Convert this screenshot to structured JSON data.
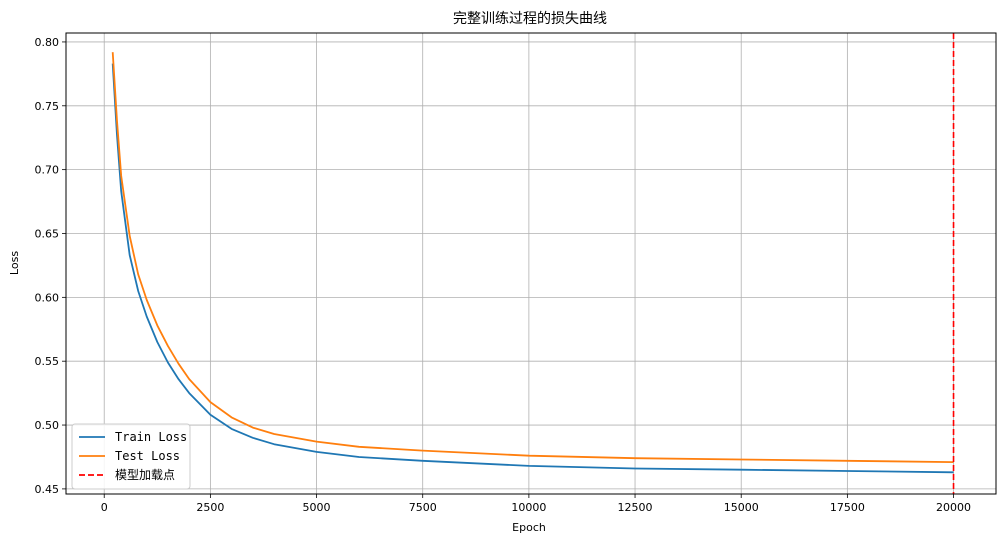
{
  "chart_data": {
    "type": "line",
    "title": "完整训练过程的损失曲线",
    "xlabel": "Epoch",
    "ylabel": "Loss",
    "xlim": [
      -900,
      21000
    ],
    "ylim": [
      0.446,
      0.807
    ],
    "xticks": [
      0,
      2500,
      5000,
      7500,
      10000,
      12500,
      15000,
      17500,
      20000
    ],
    "yticks": [
      0.45,
      0.5,
      0.55,
      0.6,
      0.65,
      0.7,
      0.75,
      0.8
    ],
    "xtick_labels": [
      "0",
      "2500",
      "5000",
      "7500",
      "10000",
      "12500",
      "15000",
      "17500",
      "20000"
    ],
    "ytick_labels": [
      "0.45",
      "0.50",
      "0.55",
      "0.60",
      "0.65",
      "0.70",
      "0.75",
      "0.80"
    ],
    "grid": true,
    "legend_position": "lower-left",
    "series": [
      {
        "name": "Train Loss",
        "color": "#1f77b4",
        "x": [
          200,
          300,
          400,
          600,
          800,
          1000,
          1250,
          1500,
          1750,
          2000,
          2500,
          3000,
          3500,
          4000,
          5000,
          6000,
          7500,
          10000,
          12500,
          15000,
          17500,
          20000
        ],
        "y": [
          0.783,
          0.727,
          0.683,
          0.633,
          0.605,
          0.585,
          0.565,
          0.549,
          0.536,
          0.525,
          0.508,
          0.497,
          0.49,
          0.485,
          0.479,
          0.475,
          0.472,
          0.468,
          0.466,
          0.465,
          0.464,
          0.463
        ]
      },
      {
        "name": "Test Loss",
        "color": "#ff7f0e",
        "x": [
          200,
          300,
          400,
          600,
          800,
          1000,
          1250,
          1500,
          1750,
          2000,
          2500,
          3000,
          3500,
          4000,
          5000,
          6000,
          7500,
          10000,
          12500,
          15000,
          17500,
          20000
        ],
        "y": [
          0.792,
          0.738,
          0.695,
          0.648,
          0.618,
          0.598,
          0.578,
          0.562,
          0.548,
          0.536,
          0.518,
          0.506,
          0.498,
          0.493,
          0.487,
          0.483,
          0.48,
          0.476,
          0.474,
          0.473,
          0.472,
          0.471
        ]
      }
    ],
    "vline": {
      "name": "模型加载点",
      "x": 20000,
      "color": "#ff0000",
      "style": "dashed"
    }
  }
}
